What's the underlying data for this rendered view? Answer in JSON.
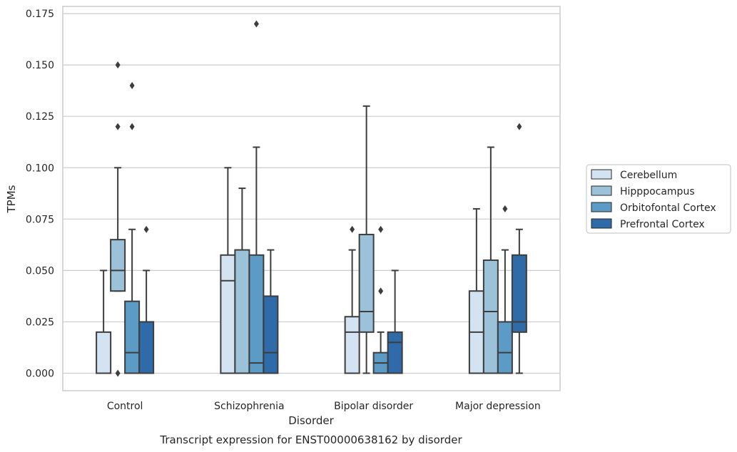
{
  "chart_data": {
    "type": "boxplot",
    "caption": "Transcript expression for ENST00000638162 by disorder",
    "xlabel": "Disorder",
    "ylabel": "TPMs",
    "ylim": [
      -0.0085,
      0.1785
    ],
    "yticks": [
      0.0,
      0.025,
      0.05,
      0.075,
      0.1,
      0.125,
      0.15,
      0.175
    ],
    "ytick_labels": [
      "0.000",
      "0.025",
      "0.050",
      "0.075",
      "0.100",
      "0.125",
      "0.150",
      "0.175"
    ],
    "grid": true,
    "legend_position": "right",
    "categories": [
      "Control",
      "Schizophrenia",
      "Bipolar disorder",
      "Major depression"
    ],
    "series": [
      {
        "name": "Cerebellum",
        "color": "#d4e3f2",
        "boxes": [
          {
            "whislo": 0.0,
            "q1": 0.0,
            "med": 0.0,
            "q3": 0.02,
            "whishi": 0.05,
            "fliers": []
          },
          {
            "whislo": 0.0,
            "q1": 0.0,
            "med": 0.045,
            "q3": 0.0575,
            "whishi": 0.1,
            "fliers": []
          },
          {
            "whislo": 0.0,
            "q1": 0.0,
            "med": 0.02,
            "q3": 0.0275,
            "whishi": 0.06,
            "fliers": [
              0.07
            ]
          },
          {
            "whislo": 0.0,
            "q1": 0.0,
            "med": 0.02,
            "q3": 0.04,
            "whishi": 0.08,
            "fliers": []
          }
        ]
      },
      {
        "name": "Hipppocampus",
        "color": "#9cc2da",
        "boxes": [
          {
            "whislo": 0.04,
            "q1": 0.04,
            "med": 0.05,
            "q3": 0.065,
            "whishi": 0.1,
            "fliers": [
              0.0,
              0.12,
              0.15
            ]
          },
          {
            "whislo": 0.0,
            "q1": 0.0,
            "med": 0.0,
            "q3": 0.06,
            "whishi": 0.09,
            "fliers": []
          },
          {
            "whislo": 0.0,
            "q1": 0.02,
            "med": 0.03,
            "q3": 0.0675,
            "whishi": 0.13,
            "fliers": []
          },
          {
            "whislo": 0.0,
            "q1": 0.0,
            "med": 0.03,
            "q3": 0.055,
            "whishi": 0.11,
            "fliers": []
          }
        ]
      },
      {
        "name": "Orbitofontal Cortex",
        "color": "#5b9bc5",
        "boxes": [
          {
            "whislo": 0.0,
            "q1": 0.0,
            "med": 0.01,
            "q3": 0.035,
            "whishi": 0.07,
            "fliers": [
              0.12,
              0.14
            ]
          },
          {
            "whislo": 0.0,
            "q1": 0.0,
            "med": 0.005,
            "q3": 0.0575,
            "whishi": 0.11,
            "fliers": [
              0.17
            ]
          },
          {
            "whislo": 0.0,
            "q1": 0.0,
            "med": 0.005,
            "q3": 0.01,
            "whishi": 0.02,
            "fliers": [
              0.04,
              0.07
            ]
          },
          {
            "whislo": 0.0,
            "q1": 0.0,
            "med": 0.01,
            "q3": 0.025,
            "whishi": 0.06,
            "fliers": [
              0.08
            ]
          }
        ]
      },
      {
        "name": "Prefrontal Cortex",
        "color": "#2f6ba8",
        "boxes": [
          {
            "whislo": 0.0,
            "q1": 0.0,
            "med": 0.0,
            "q3": 0.025,
            "whishi": 0.05,
            "fliers": [
              0.07
            ]
          },
          {
            "whislo": 0.0,
            "q1": 0.0,
            "med": 0.01,
            "q3": 0.0375,
            "whishi": 0.06,
            "fliers": []
          },
          {
            "whislo": 0.0,
            "q1": 0.0,
            "med": 0.015,
            "q3": 0.02,
            "whishi": 0.05,
            "fliers": []
          },
          {
            "whislo": 0.0,
            "q1": 0.02,
            "med": 0.025,
            "q3": 0.0575,
            "whishi": 0.07,
            "fliers": [
              0.12
            ]
          }
        ]
      }
    ]
  }
}
